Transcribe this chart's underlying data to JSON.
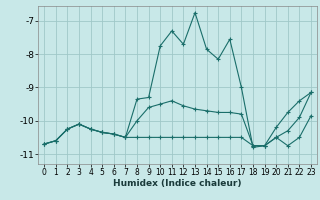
{
  "xlabel": "Humidex (Indice chaleur)",
  "bg_color": "#c8e8e8",
  "grid_color": "#a0c8c8",
  "line_color": "#1a6e6a",
  "xlim": [
    -0.5,
    23.5
  ],
  "ylim": [
    -11.3,
    -6.55
  ],
  "yticks": [
    -11,
    -10,
    -9,
    -8,
    -7
  ],
  "xticks": [
    0,
    1,
    2,
    3,
    4,
    5,
    6,
    7,
    8,
    9,
    10,
    11,
    12,
    13,
    14,
    15,
    16,
    17,
    18,
    19,
    20,
    21,
    22,
    23
  ],
  "line1_x": [
    0,
    1,
    2,
    3,
    4,
    5,
    6,
    7,
    8,
    9,
    10,
    11,
    12,
    13,
    14,
    15,
    16,
    17,
    18,
    19,
    20,
    21,
    22,
    23
  ],
  "line1_y": [
    -10.7,
    -10.6,
    -10.25,
    -10.1,
    -10.25,
    -10.35,
    -10.4,
    -10.5,
    -9.35,
    -9.3,
    -7.75,
    -7.3,
    -7.7,
    -6.75,
    -7.85,
    -8.15,
    -7.55,
    -9.0,
    -10.8,
    -10.75,
    -10.5,
    -10.3,
    -9.9,
    -9.15
  ],
  "line2_x": [
    0,
    1,
    2,
    3,
    4,
    5,
    6,
    7,
    8,
    9,
    10,
    11,
    12,
    13,
    14,
    15,
    16,
    17,
    18,
    19,
    20,
    21,
    22,
    23
  ],
  "line2_y": [
    -10.7,
    -10.6,
    -10.25,
    -10.1,
    -10.25,
    -10.35,
    -10.4,
    -10.5,
    -10.5,
    -10.5,
    -10.5,
    -10.5,
    -10.5,
    -10.5,
    -10.5,
    -10.5,
    -10.5,
    -10.5,
    -10.75,
    -10.75,
    -10.5,
    -10.75,
    -10.5,
    -9.85
  ],
  "line3_x": [
    0,
    1,
    2,
    3,
    4,
    5,
    6,
    7,
    8,
    9,
    10,
    11,
    12,
    13,
    14,
    15,
    16,
    17,
    18,
    19,
    20,
    21,
    22,
    23
  ],
  "line3_y": [
    -10.7,
    -10.6,
    -10.25,
    -10.1,
    -10.25,
    -10.35,
    -10.4,
    -10.5,
    -10.0,
    -9.6,
    -9.5,
    -9.4,
    -9.55,
    -9.65,
    -9.7,
    -9.75,
    -9.75,
    -9.8,
    -10.75,
    -10.75,
    -10.2,
    -9.75,
    -9.4,
    -9.15
  ]
}
